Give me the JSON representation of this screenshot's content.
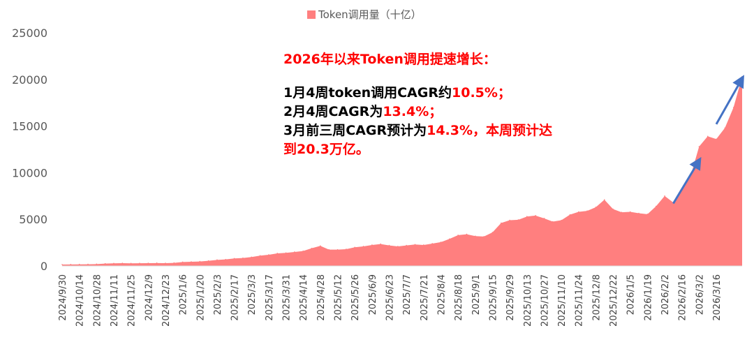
{
  "legend": {
    "label": "Token调用量（十亿）",
    "color": "#ff7f7f"
  },
  "annotation": {
    "headline": "2026年以来Token调用提速增长：",
    "line1": {
      "prefix": "1月4周token调用CAGR约",
      "value": "10.5%",
      "suffix": "；"
    },
    "line2": {
      "prefix": "2月4周CAGR为",
      "value": "13.4%",
      "suffix": "；"
    },
    "line3": {
      "prefix": "3月前三周CAGR预计为",
      "value": "14.3%",
      "suffix": "，本周预计达"
    },
    "line4": {
      "prefix": "到",
      "value": "20.3",
      "suffix": "万亿。"
    }
  },
  "chart_data": {
    "type": "area",
    "title": "",
    "xlabel": "",
    "ylabel": "",
    "ylim": [
      0,
      25000
    ],
    "yticks": [
      0,
      5000,
      10000,
      15000,
      20000,
      25000
    ],
    "tick_labels": [
      "2024/9/30",
      "2024/10/14",
      "2024/10/28",
      "2024/11/11",
      "2024/11/25",
      "2024/12/9",
      "2024/12/23",
      "2025/1/6",
      "2025/1/20",
      "2025/2/3",
      "2025/2/17",
      "2025/3/3",
      "2025/3/17",
      "2025/3/31",
      "2025/4/14",
      "2025/4/28",
      "2025/5/12",
      "2025/5/26",
      "2025/6/9",
      "2025/6/23",
      "2025/7/7",
      "2025/7/21",
      "2025/8/4",
      "2025/8/18",
      "2025/9/1",
      "2025/9/15",
      "2025/9/29",
      "2025/10/13",
      "2025/10/27",
      "2025/11/10",
      "2025/11/24",
      "2025/12/8",
      "2025/12/22",
      "2026/1/5",
      "2026/1/19",
      "2026/2/2",
      "2026/2/16",
      "2026/3/2",
      "2026/3/16"
    ],
    "series": [
      {
        "name": "Token调用量（十亿）",
        "color": "#ff7f7f",
        "values": [
          150,
          160,
          170,
          180,
          200,
          250,
          280,
          300,
          280,
          290,
          300,
          310,
          300,
          330,
          420,
          450,
          480,
          550,
          650,
          700,
          800,
          850,
          950,
          1100,
          1200,
          1350,
          1400,
          1500,
          1600,
          1900,
          2150,
          1750,
          1750,
          1800,
          2000,
          2100,
          2250,
          2350,
          2200,
          2100,
          2200,
          2300,
          2250,
          2400,
          2550,
          2900,
          3300,
          3400,
          3200,
          3150,
          3600,
          4600,
          4900,
          4950,
          5300,
          5400,
          5100,
          4750,
          4900,
          5500,
          5800,
          5900,
          6300,
          7100,
          6100,
          5750,
          5800,
          5650,
          5550,
          6400,
          7500,
          6800,
          8300,
          9600,
          12800,
          13900,
          13600,
          14800,
          17000,
          20300
        ]
      }
    ],
    "arrows": [
      {
        "from": [
          71,
          6700
        ],
        "to": [
          74,
          11300
        ]
      },
      {
        "from": [
          76,
          15200
        ],
        "to": [
          79,
          20100
        ]
      }
    ]
  }
}
